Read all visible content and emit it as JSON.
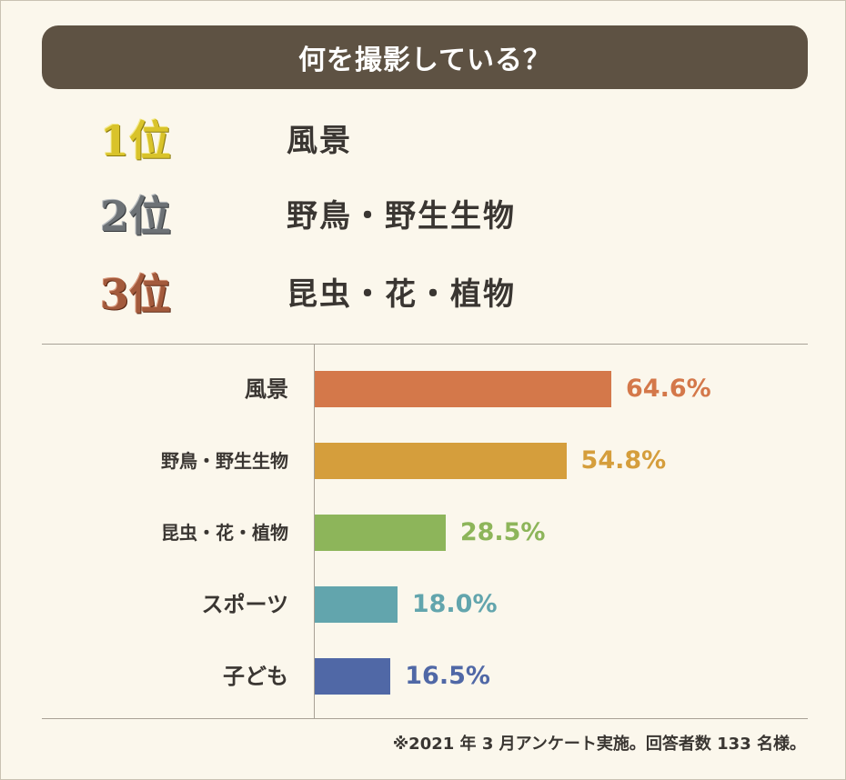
{
  "title": "何を撮影している？",
  "ranking": [
    {
      "rank": "1位",
      "name": "風景"
    },
    {
      "rank": "2位",
      "name": "野鳥・野生生物"
    },
    {
      "rank": "3位",
      "name": "昆虫・花・植物"
    }
  ],
  "chart_data": {
    "type": "bar",
    "orientation": "horizontal",
    "categories": [
      "風景",
      "野鳥・野生生物",
      "昆虫・花・植物",
      "スポーツ",
      "子ども"
    ],
    "values": [
      64.6,
      54.8,
      28.5,
      18.0,
      16.5
    ],
    "value_labels": [
      "64.6%",
      "54.8%",
      "28.5%",
      "18.0%",
      "16.5%"
    ],
    "colors": [
      "#d4784a",
      "#d59e3c",
      "#8db55a",
      "#62a5ad",
      "#5068a6"
    ],
    "xlim": [
      0,
      100
    ],
    "grid": false
  },
  "footnote": "※2021 年 3 月アンケート実施。回答者数 133 名様。"
}
